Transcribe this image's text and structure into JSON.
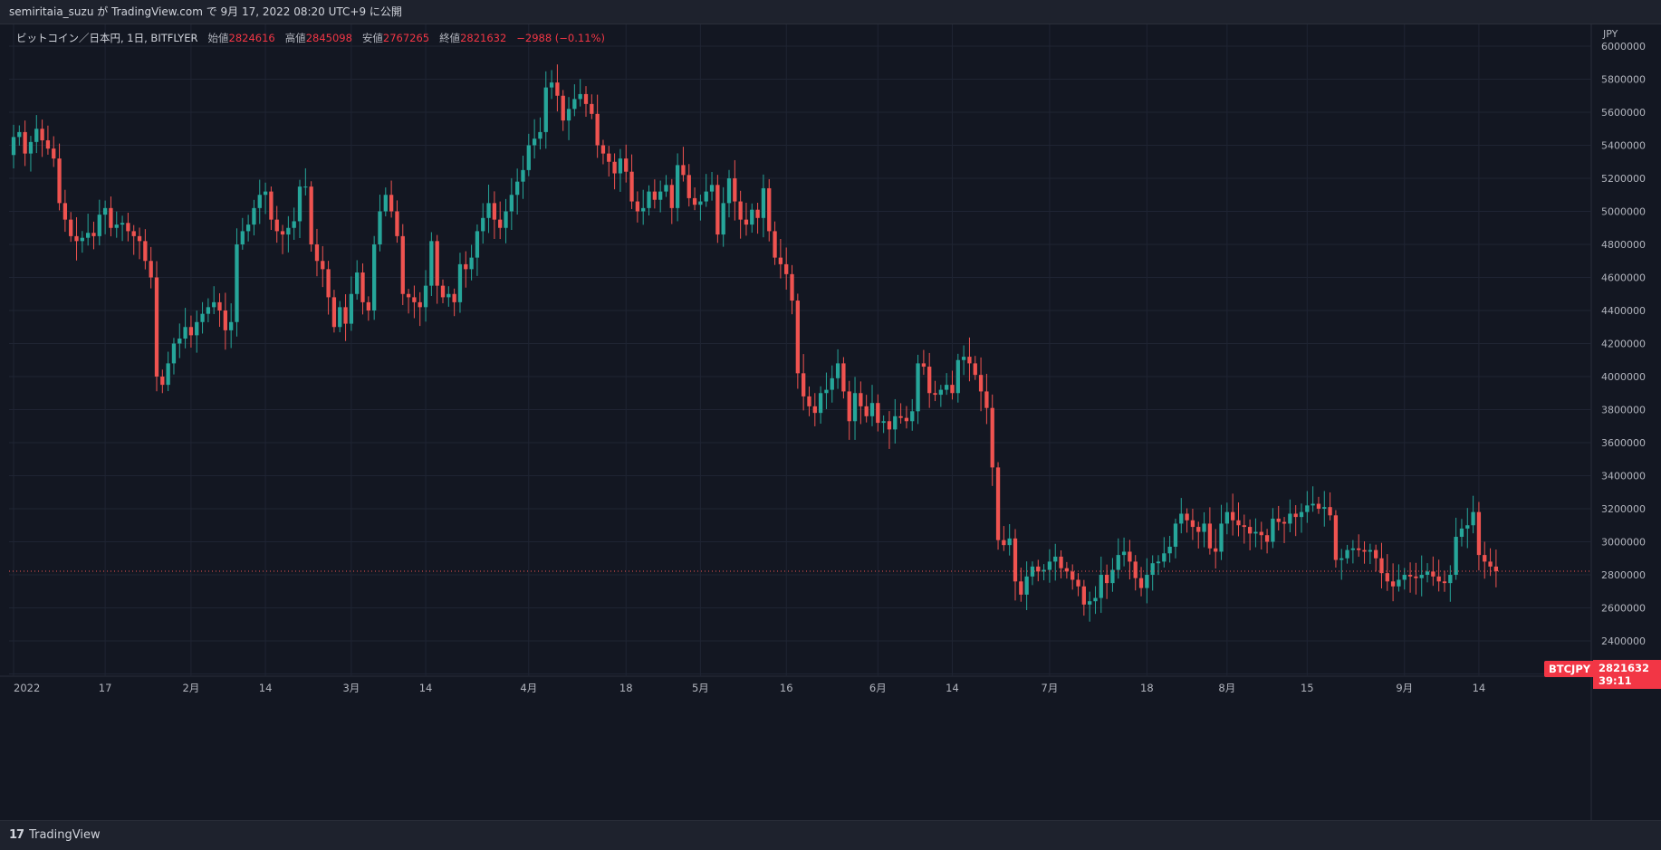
{
  "header": {
    "user": "semiritaia_suzu",
    "text": "semiritaia_suzu が TradingView.com で 9月 17, 2022 08:20 UTC+9 に公開"
  },
  "legend": {
    "symbol": "ビットコイン／日本円, 1日, BITFLYER",
    "open_label": "始値",
    "open": "2824616",
    "high_label": "高値",
    "high": "2845098",
    "low_label": "安値",
    "low": "2767265",
    "close_label": "終値",
    "close": "2821632",
    "change": "−2988 (−0.11%)"
  },
  "price_tag": {
    "symbol": "BTCJPY",
    "price": "2821632",
    "countdown": "39:11"
  },
  "footer": {
    "brand": "TradingView"
  },
  "colors": {
    "up": "#26a69a",
    "down": "#ef5350",
    "bg": "#131722",
    "grid": "#1f2433",
    "text": "#b2b5be"
  },
  "chart_data": {
    "type": "candlestick",
    "currency_label": "JPY",
    "ylim": [
      2200000,
      6000000
    ],
    "y_ticks": [
      6000000,
      5800000,
      5600000,
      5400000,
      5200000,
      5000000,
      4800000,
      4600000,
      4400000,
      4200000,
      4000000,
      3800000,
      3600000,
      3400000,
      3200000,
      3000000,
      2800000,
      2600000,
      2400000,
      2200000
    ],
    "x_ticks": [
      {
        "label": "2022",
        "day": 1
      },
      {
        "label": "17",
        "day": 17
      },
      {
        "label": "2月",
        "day": 32
      },
      {
        "label": "14",
        "day": 45
      },
      {
        "label": "3月",
        "day": 60
      },
      {
        "label": "14",
        "day": 73
      },
      {
        "label": "4月",
        "day": 91
      },
      {
        "label": "18",
        "day": 108
      },
      {
        "label": "5月",
        "day": 121
      },
      {
        "label": "16",
        "day": 136
      },
      {
        "label": "6月",
        "day": 152
      },
      {
        "label": "14",
        "day": 165
      },
      {
        "label": "7月",
        "day": 182
      },
      {
        "label": "18",
        "day": 199
      },
      {
        "label": "8月",
        "day": 213
      },
      {
        "label": "15",
        "day": 227
      },
      {
        "label": "9月",
        "day": 244
      },
      {
        "label": "14",
        "day": 257
      }
    ],
    "first_day": 1,
    "last_price": 2821632,
    "closes": [
      5450000,
      5480000,
      5350000,
      5420000,
      5500000,
      5430000,
      5380000,
      5320000,
      5050000,
      4950000,
      4850000,
      4820000,
      4840000,
      4870000,
      4850000,
      4980000,
      5020000,
      4900000,
      4920000,
      4930000,
      4880000,
      4850000,
      4820000,
      4700000,
      4600000,
      4000000,
      3950000,
      4080000,
      4200000,
      4230000,
      4300000,
      4250000,
      4330000,
      4380000,
      4420000,
      4450000,
      4400000,
      4280000,
      4330000,
      4800000,
      4880000,
      4920000,
      5020000,
      5100000,
      5120000,
      4950000,
      4880000,
      4860000,
      4900000,
      4940000,
      5150000,
      5150000,
      4800000,
      4700000,
      4650000,
      4480000,
      4300000,
      4420000,
      4320000,
      4500000,
      4630000,
      4450000,
      4400000,
      4800000,
      5000000,
      5100000,
      5000000,
      4850000,
      4500000,
      4480000,
      4450000,
      4420000,
      4550000,
      4820000,
      4550000,
      4480000,
      4500000,
      4450000,
      4680000,
      4650000,
      4720000,
      4880000,
      4960000,
      5050000,
      4950000,
      4900000,
      5000000,
      5100000,
      5180000,
      5250000,
      5400000,
      5440000,
      5480000,
      5750000,
      5780000,
      5700000,
      5550000,
      5620000,
      5680000,
      5710000,
      5650000,
      5590000,
      5400000,
      5350000,
      5300000,
      5230000,
      5320000,
      5240000,
      5060000,
      5000000,
      5020000,
      5120000,
      5070000,
      5120000,
      5160000,
      5020000,
      5280000,
      5220000,
      5080000,
      5040000,
      5060000,
      5120000,
      5160000,
      4860000,
      5050000,
      5200000,
      5060000,
      4950000,
      4920000,
      5010000,
      4960000,
      5140000,
      4880000,
      4720000,
      4680000,
      4620000,
      4460000,
      4020000,
      3880000,
      3820000,
      3780000,
      3900000,
      3920000,
      3990000,
      4080000,
      3910000,
      3730000,
      3900000,
      3820000,
      3760000,
      3840000,
      3720000,
      3730000,
      3680000,
      3760000,
      3750000,
      3730000,
      3790000,
      4080000,
      4060000,
      3900000,
      3890000,
      3920000,
      3950000,
      3900000,
      4100000,
      4120000,
      4080000,
      4010000,
      3910000,
      3810000,
      3450000,
      3010000,
      2980000,
      3020000,
      2760000,
      2680000,
      2790000,
      2850000,
      2820000,
      2830000,
      2880000,
      2910000,
      2840000,
      2820000,
      2770000,
      2730000,
      2620000,
      2640000,
      2660000,
      2800000,
      2750000,
      2830000,
      2920000,
      2940000,
      2880000,
      2780000,
      2720000,
      2800000,
      2870000,
      2880000,
      2930000,
      2970000,
      3110000,
      3170000,
      3130000,
      3090000,
      3060000,
      3110000,
      2960000,
      2940000,
      3110000,
      3180000,
      3130000,
      3100000,
      3090000,
      3050000,
      3060000,
      3040000,
      3000000,
      3140000,
      3120000,
      3110000,
      3170000,
      3150000,
      3180000,
      3220000,
      3230000,
      3200000,
      3210000,
      3160000,
      2890000,
      2900000,
      2950000,
      2960000,
      2950000,
      2940000,
      2950000,
      2900000,
      2810000,
      2760000,
      2730000,
      2770000,
      2800000,
      2790000,
      2780000,
      2800000,
      2820000,
      2790000,
      2760000,
      2750000,
      2800000,
      3030000,
      3080000,
      3100000,
      3180000,
      2920000,
      2880000,
      2850000,
      2821632
    ]
  }
}
